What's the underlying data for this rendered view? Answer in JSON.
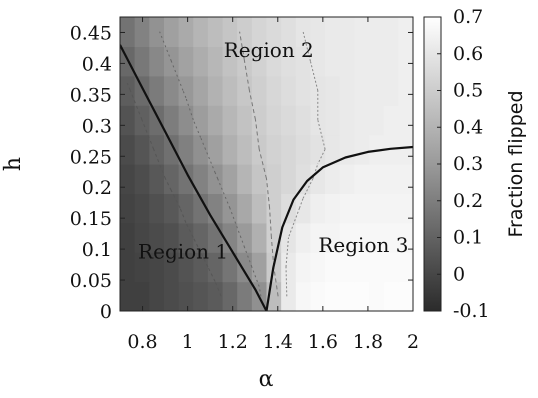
{
  "chart_data": {
    "type": "heatmap",
    "xlabel": "α",
    "ylabel": "h",
    "colorbar_label": "Fraction flipped",
    "xlim": [
      0.7,
      2.0
    ],
    "ylim": [
      0,
      0.475
    ],
    "x_ticks": [
      "0.8",
      "1",
      "1.2",
      "1.4",
      "1.6",
      "1.8",
      "2"
    ],
    "x_tick_values": [
      0.8,
      1.0,
      1.2,
      1.4,
      1.6,
      1.8,
      2.0
    ],
    "y_ticks": [
      "0",
      "0.05",
      "0.1",
      "0.15",
      "0.2",
      "0.25",
      "0.3",
      "0.35",
      "0.4",
      "0.45"
    ],
    "y_tick_values": [
      0,
      0.05,
      0.1,
      0.15,
      0.2,
      0.25,
      0.3,
      0.35,
      0.4,
      0.45
    ],
    "colorbar_ticks": [
      "0.7",
      "0.6",
      "0.5",
      "0.4",
      "0.3",
      "0.2",
      "0.1",
      "0",
      "-0.1"
    ],
    "colorbar_tick_values": [
      0.7,
      0.6,
      0.5,
      0.4,
      0.3,
      0.2,
      0.1,
      0.0,
      -0.1
    ],
    "colorbar_range": [
      -0.1,
      0.7
    ],
    "region_labels": [
      {
        "text": "Region 1",
        "x": 0.98,
        "y": 0.085
      },
      {
        "text": "Region 2",
        "x": 1.36,
        "y": 0.41
      },
      {
        "text": "Region 3",
        "x": 1.78,
        "y": 0.095
      }
    ],
    "boundaries": [
      {
        "name": "region-1-boundary",
        "x": [
          0.7,
          0.8,
          0.9,
          1.0,
          1.1,
          1.2,
          1.3,
          1.35
        ],
        "y": [
          0.43,
          0.36,
          0.29,
          0.22,
          0.155,
          0.095,
          0.035,
          0.0
        ]
      },
      {
        "name": "region-3-boundary",
        "x": [
          1.35,
          1.38,
          1.42,
          1.47,
          1.53,
          1.6,
          1.7,
          1.8,
          1.9,
          2.0
        ],
        "y": [
          0.0,
          0.07,
          0.135,
          0.18,
          0.21,
          0.232,
          0.248,
          0.257,
          0.262,
          0.265
        ]
      }
    ],
    "field": {
      "x_cells": [
        0.7,
        0.765,
        0.83,
        0.895,
        0.96,
        1.025,
        1.09,
        1.155,
        1.22,
        1.285,
        1.35,
        1.415,
        1.48,
        1.545,
        1.61,
        1.675,
        1.74,
        1.805,
        1.87,
        1.935
      ],
      "y_cells": [
        0.0,
        0.0475,
        0.095,
        0.1425,
        0.19,
        0.2375,
        0.285,
        0.3325,
        0.38,
        0.4275
      ],
      "values": [
        [
          -0.02,
          -0.02,
          0.0,
          0.02,
          0.04,
          0.06,
          0.08,
          0.13,
          0.2,
          0.28,
          0.45,
          0.62,
          0.67,
          0.68,
          0.69,
          0.69,
          0.69,
          0.68,
          0.69,
          0.69
        ],
        [
          -0.02,
          -0.01,
          0.0,
          0.02,
          0.05,
          0.08,
          0.12,
          0.18,
          0.26,
          0.34,
          0.5,
          0.62,
          0.66,
          0.67,
          0.68,
          0.68,
          0.68,
          0.68,
          0.68,
          0.68
        ],
        [
          -0.02,
          0.0,
          0.02,
          0.04,
          0.08,
          0.12,
          0.17,
          0.24,
          0.32,
          0.4,
          0.52,
          0.6,
          0.64,
          0.66,
          0.66,
          0.67,
          0.67,
          0.67,
          0.67,
          0.67
        ],
        [
          -0.01,
          0.01,
          0.04,
          0.07,
          0.12,
          0.17,
          0.23,
          0.3,
          0.37,
          0.45,
          0.52,
          0.57,
          0.61,
          0.64,
          0.65,
          0.66,
          0.66,
          0.66,
          0.66,
          0.66
        ],
        [
          0.0,
          0.03,
          0.07,
          0.12,
          0.17,
          0.23,
          0.29,
          0.35,
          0.42,
          0.48,
          0.52,
          0.55,
          0.58,
          0.61,
          0.63,
          0.64,
          0.65,
          0.65,
          0.65,
          0.65
        ],
        [
          0.02,
          0.06,
          0.11,
          0.16,
          0.22,
          0.28,
          0.34,
          0.4,
          0.45,
          0.5,
          0.53,
          0.55,
          0.57,
          0.59,
          0.61,
          0.62,
          0.63,
          0.64,
          0.64,
          0.64
        ],
        [
          0.05,
          0.1,
          0.15,
          0.21,
          0.27,
          0.33,
          0.38,
          0.43,
          0.47,
          0.51,
          0.54,
          0.56,
          0.58,
          0.6,
          0.61,
          0.62,
          0.63,
          0.63,
          0.64,
          0.64
        ],
        [
          0.09,
          0.14,
          0.2,
          0.26,
          0.31,
          0.36,
          0.41,
          0.45,
          0.49,
          0.52,
          0.55,
          0.57,
          0.59,
          0.6,
          0.61,
          0.62,
          0.63,
          0.63,
          0.63,
          0.64
        ],
        [
          0.13,
          0.19,
          0.25,
          0.3,
          0.35,
          0.39,
          0.43,
          0.47,
          0.5,
          0.53,
          0.56,
          0.58,
          0.59,
          0.61,
          0.62,
          0.62,
          0.63,
          0.63,
          0.63,
          0.64
        ],
        [
          0.17,
          0.23,
          0.29,
          0.34,
          0.38,
          0.42,
          0.45,
          0.48,
          0.51,
          0.54,
          0.56,
          0.58,
          0.6,
          0.61,
          0.62,
          0.62,
          0.63,
          0.63,
          0.63,
          0.64
        ]
      ]
    },
    "grid": false,
    "legend": "colorbar-right"
  }
}
